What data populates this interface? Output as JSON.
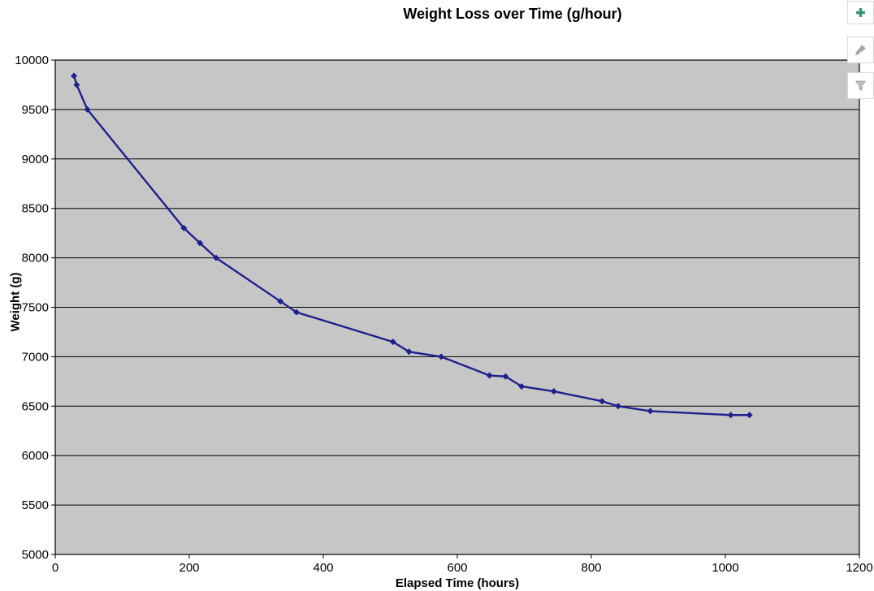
{
  "chart_data": {
    "type": "line",
    "title": "Weight Loss over Time (g/hour)",
    "xlabel": "Elapsed Time (hours)",
    "ylabel": "Weight (g)",
    "xlim": [
      0,
      1200
    ],
    "ylim": [
      5000,
      10000
    ],
    "xticks": [
      0,
      200,
      400,
      600,
      800,
      1000,
      1200
    ],
    "yticks": [
      5000,
      5500,
      6000,
      6500,
      7000,
      7500,
      8000,
      8500,
      9000,
      9500,
      10000
    ],
    "grid": "horizontal-only",
    "legend": "none",
    "series": [
      {
        "marker": "diamond",
        "color": "#20208C",
        "x": [
          28,
          32,
          48,
          192,
          216,
          240,
          336,
          360,
          504,
          528,
          576,
          648,
          672,
          696,
          744,
          816,
          840,
          888,
          1008,
          1036
        ],
        "y": [
          9840,
          9750,
          9500,
          8300,
          8150,
          8000,
          7560,
          7450,
          7150,
          7050,
          7000,
          6810,
          6800,
          6700,
          6650,
          6550,
          6500,
          6450,
          6410,
          6410
        ]
      }
    ]
  },
  "chart_tools": {
    "buttons": [
      {
        "name": "chart-elements-button",
        "icon": "plus-icon"
      },
      {
        "name": "chart-styles-button",
        "icon": "paintbrush-icon"
      },
      {
        "name": "chart-filters-button",
        "icon": "funnel-icon"
      }
    ]
  },
  "colors": {
    "chart_background": "#FFFFFF",
    "plot_background": "#C6C6C6",
    "gridline": "#000000",
    "button_border": "#D9D9D9",
    "plus_icon_green": "#3A9679",
    "tool_icon_gray": "#A6A6A6",
    "funnel_icon_fill": "#C4C4C4",
    "funnel_icon_stroke": "#8F8F8F"
  }
}
